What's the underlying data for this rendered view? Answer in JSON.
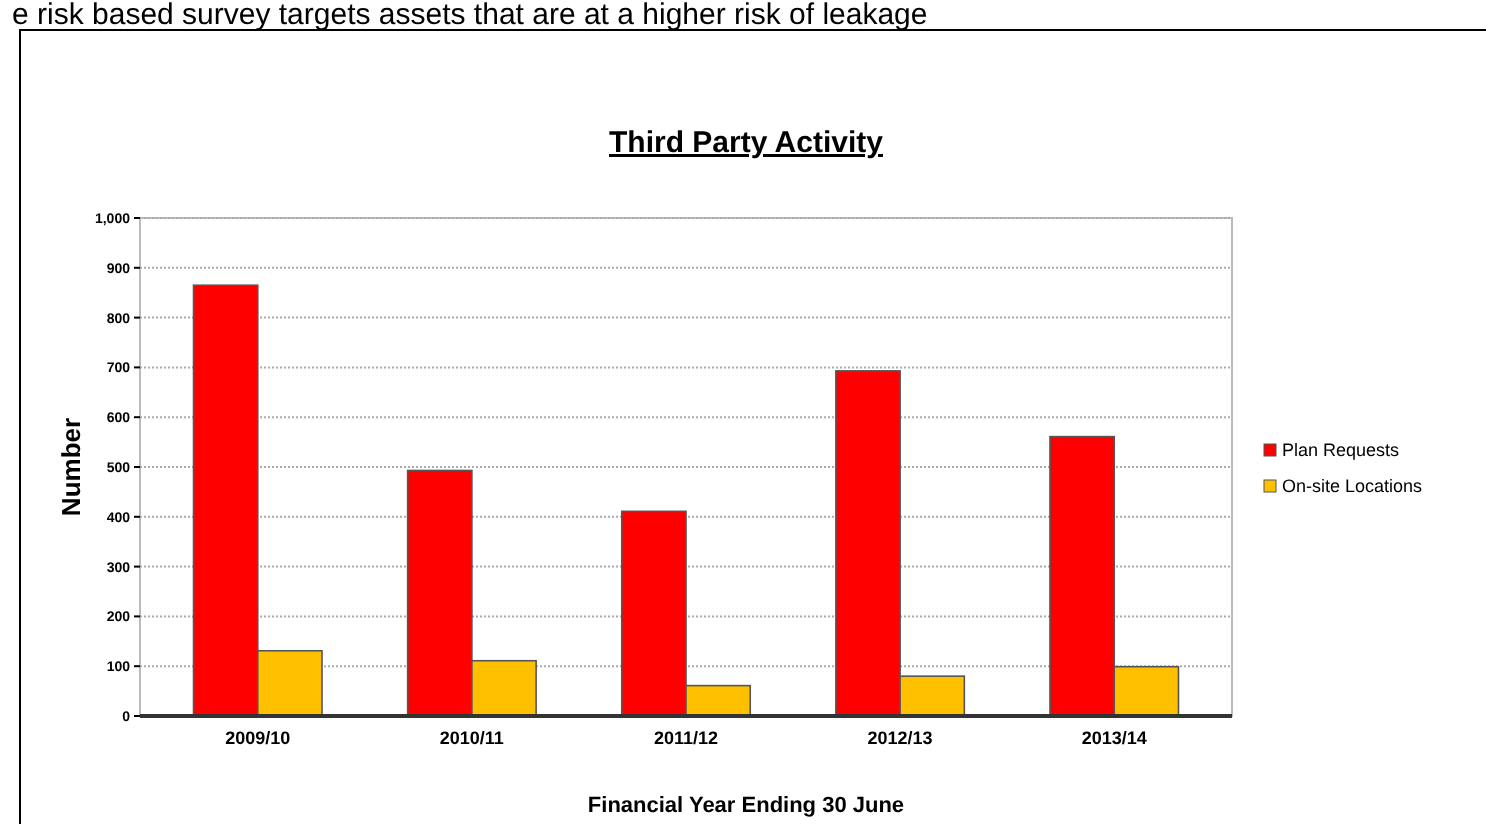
{
  "chart_data": {
    "type": "bar",
    "title": "Third Party Activity",
    "xlabel": "Financial Year Ending 30 June",
    "ylabel": "Number",
    "annotations": [
      "e risk based survey targets assets that are at a higher risk of leakage"
    ],
    "categories": [
      "2009/10",
      "2010/11",
      "2011/12",
      "2012/13",
      "2013/14"
    ],
    "series": [
      {
        "name": "Plan Requests",
        "color": "#ff0000",
        "values": [
          865,
          493,
          411,
          693,
          561
        ]
      },
      {
        "name": "On-site Locations",
        "color": "#ffc000",
        "values": [
          131,
          111,
          61,
          80,
          99
        ]
      }
    ],
    "ylim": [
      0,
      1000
    ],
    "yticks": [
      0,
      100,
      200,
      300,
      400,
      500,
      600,
      700,
      800,
      900,
      {
        "value": 1000,
        "label": "1,000"
      }
    ],
    "grid": "y",
    "legend": "right"
  }
}
